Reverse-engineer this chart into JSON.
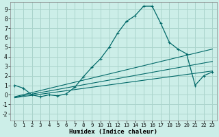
{
  "title": "",
  "xlabel": "Humidex (Indice chaleur)",
  "ylabel": "",
  "bg_color": "#cceee8",
  "grid_color": "#aad4cc",
  "line_color": "#006868",
  "xlim": [
    -0.5,
    23.5
  ],
  "ylim": [
    -2.7,
    9.7
  ],
  "xticks": [
    0,
    1,
    2,
    3,
    4,
    5,
    6,
    7,
    8,
    9,
    10,
    11,
    12,
    13,
    14,
    15,
    16,
    17,
    18,
    19,
    20,
    21,
    22,
    23
  ],
  "yticks": [
    -2,
    -1,
    0,
    1,
    2,
    3,
    4,
    5,
    6,
    7,
    8,
    9
  ],
  "main_curve_x": [
    0,
    1,
    2,
    3,
    4,
    5,
    6,
    7,
    8,
    9,
    10,
    11,
    12,
    13,
    14,
    15,
    16,
    17,
    18,
    19,
    20,
    21,
    22,
    23
  ],
  "main_curve_y": [
    1.0,
    0.7,
    0.0,
    -0.2,
    0.0,
    -0.1,
    0.1,
    0.8,
    1.9,
    2.9,
    3.8,
    5.0,
    6.5,
    7.7,
    8.3,
    9.3,
    9.3,
    7.5,
    5.5,
    4.8,
    4.3,
    1.0,
    2.0,
    2.4
  ],
  "line1_x": [
    0,
    20,
    23
  ],
  "line1_y": [
    -0.2,
    4.5,
    4.5
  ],
  "line2_x": [
    0,
    20,
    23
  ],
  "line2_y": [
    -0.3,
    2.6,
    3.2
  ],
  "line3_x": [
    0,
    20,
    23
  ],
  "line3_y": [
    -0.15,
    3.5,
    3.8
  ],
  "marker_style": "+"
}
